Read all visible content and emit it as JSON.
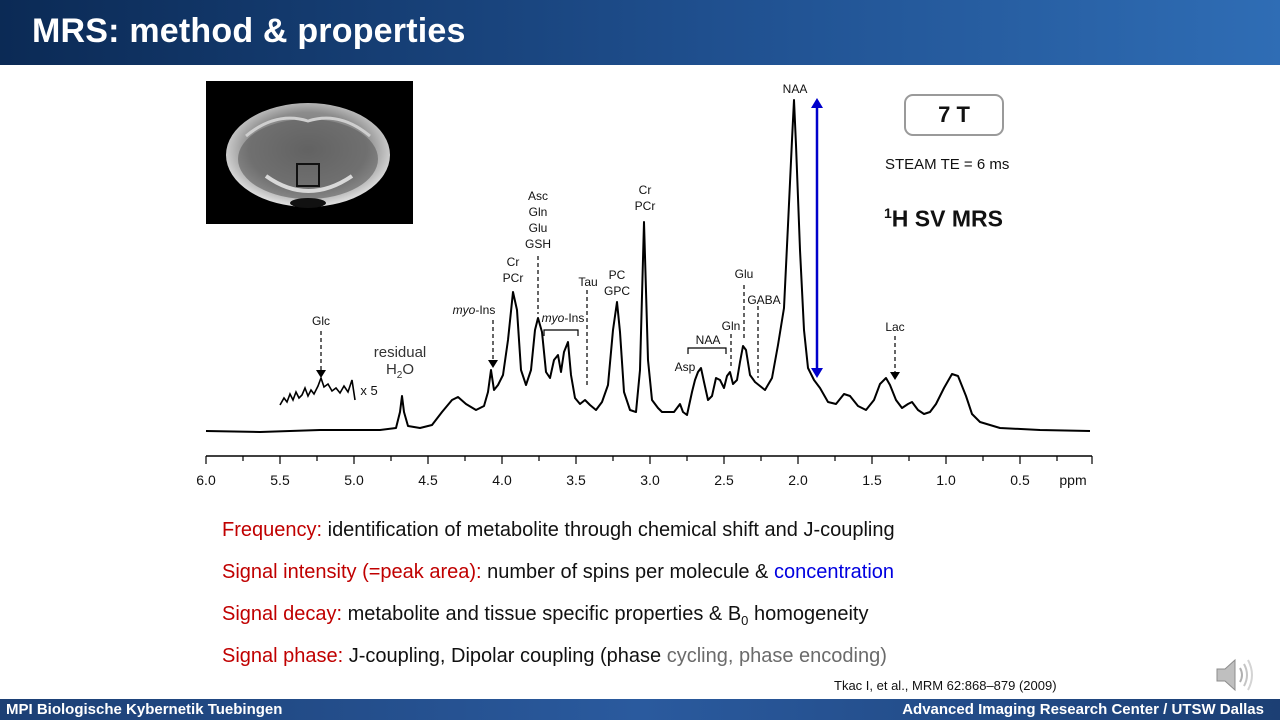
{
  "header": {
    "title": "MRS: method & properties"
  },
  "footer": {
    "left": "MPI Biologische Kybernetik Tuebingen",
    "right": "Advanced Imaging Research Center / UTSW Dallas"
  },
  "figure": {
    "field_strength": "7 T",
    "sequence": "STEAM  TE = 6 ms",
    "technique_sup": "1",
    "technique": "H SV MRS",
    "axis_label": "ppm",
    "ticks": [
      "6.0",
      "5.5",
      "5.0",
      "4.5",
      "4.0",
      "3.5",
      "3.0",
      "2.5",
      "2.0",
      "1.5",
      "1.0",
      "0.5"
    ],
    "inset_scale": "x 5",
    "residual_label": "residual",
    "water_h": "H",
    "water_sub": "2",
    "water_o": "O",
    "peaks": {
      "glc": "Glc",
      "myoins1_prefix": "myo",
      "myoins1_suffix": "-Ins",
      "myoins2_prefix": "myo",
      "myoins2_suffix": "-Ins",
      "cr1": "Cr",
      "pcr1": "PCr",
      "asc": "Asc",
      "gln1": "Gln",
      "glu1": "Glu",
      "gsh": "GSH",
      "tau": "Tau",
      "pc": "PC",
      "gpc": "GPC",
      "cr2": "Cr",
      "pcr2": "PCr",
      "asp": "Asp",
      "naa_bracket": "NAA",
      "gln2": "Gln",
      "glu2": "Glu",
      "gaba": "GABA",
      "naa_top": "NAA",
      "lac": "Lac"
    }
  },
  "properties": [
    {
      "key": "Frequency:",
      "text": " identification of metabolite through chemical shift and J-coupling"
    },
    {
      "key": "Signal intensity (=peak area):",
      "text": " number of spins per molecule & ",
      "highlight": "concentration"
    },
    {
      "key": "Signal decay:",
      "text": " metabolite and tissue specific properties & B",
      "sub": "0",
      "text2": " homogeneity"
    },
    {
      "key": "Signal phase:",
      "text": " J-coupling, Dipolar coupling (phase ",
      "gray": "cycling, phase encoding)"
    }
  ],
  "citation": "Tkac I,  et al., MRM 62:868–879 (2009)",
  "colors": {
    "header": "#1f4f8e",
    "key": "#c00000",
    "highlight": "#0000e0",
    "arrow": "#0000cc"
  }
}
